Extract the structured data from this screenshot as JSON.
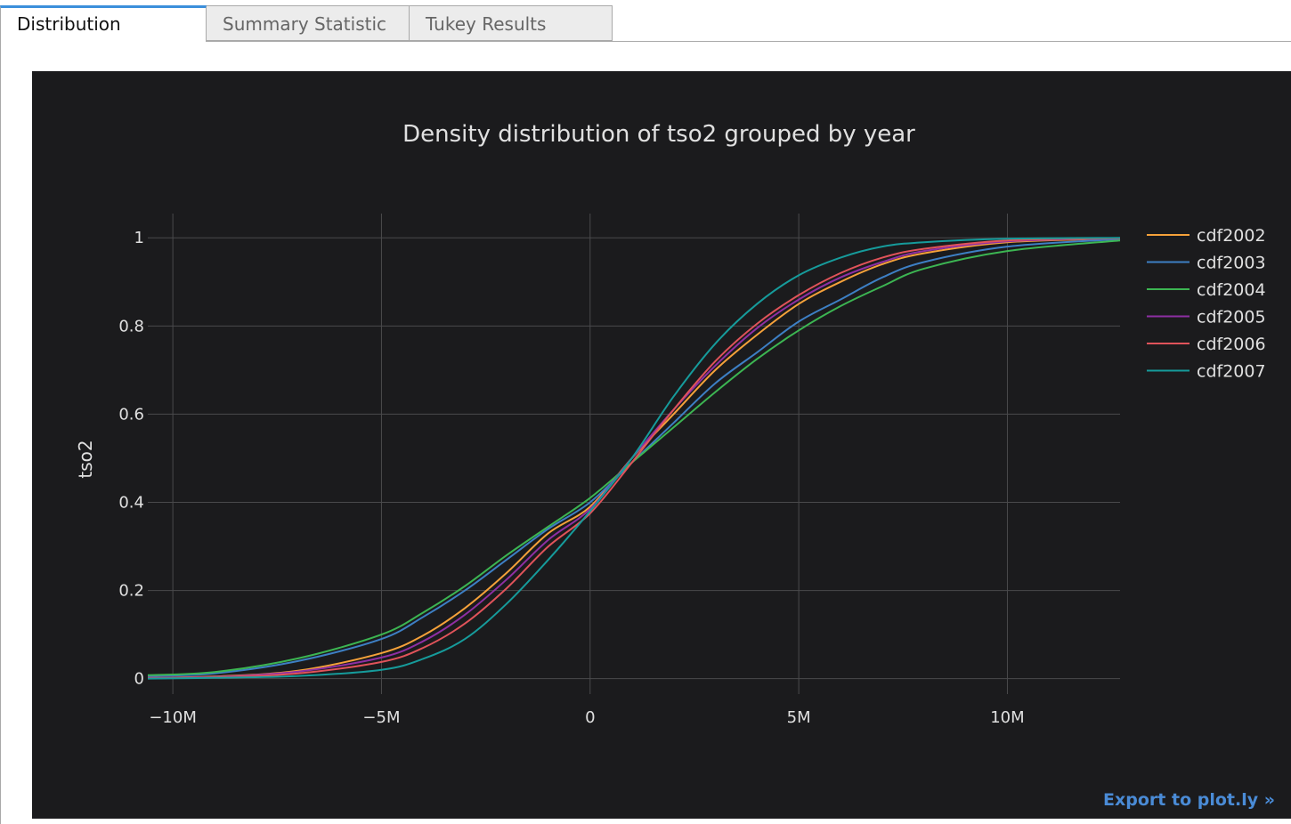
{
  "tabs": [
    {
      "label": "Distribution",
      "active": true
    },
    {
      "label": "Summary Statistic",
      "active": false
    },
    {
      "label": "Tukey Results",
      "active": false
    }
  ],
  "export_label": "Export to plot.ly »",
  "colors": {
    "background": "#1b1b1d",
    "grid": "#4a4a4c",
    "text": "#e0e0e0",
    "accent": "#3b8fdb",
    "export_link": "#4a8bd6"
  },
  "chart_data": {
    "type": "line",
    "title": "Density distribution of tso2 grouped by year",
    "xlabel": "",
    "ylabel": "tso2",
    "xlim": [
      -10600000,
      12700000
    ],
    "ylim": [
      -0.035,
      1.055
    ],
    "x_ticks": [
      {
        "value": -10000000,
        "label": "−10M"
      },
      {
        "value": -5000000,
        "label": "−5M"
      },
      {
        "value": 0,
        "label": "0"
      },
      {
        "value": 5000000,
        "label": "5M"
      },
      {
        "value": 10000000,
        "label": "10M"
      }
    ],
    "y_ticks": [
      {
        "value": 0,
        "label": "0"
      },
      {
        "value": 0.2,
        "label": "0.2"
      },
      {
        "value": 0.4,
        "label": "0.4"
      },
      {
        "value": 0.6,
        "label": "0.6"
      },
      {
        "value": 0.8,
        "label": "0.8"
      },
      {
        "value": 1,
        "label": "1"
      }
    ],
    "grid": true,
    "legend_position": "top-right",
    "x": [
      -10600000,
      -9000000,
      -7000000,
      -5000000,
      -4000000,
      -3000000,
      -2000000,
      -1000000,
      0,
      1000000,
      2000000,
      3000000,
      4000000,
      5000000,
      6000000,
      7000000,
      8000000,
      10000000,
      12700000
    ],
    "series": [
      {
        "name": "cdf2002",
        "color": "#f5a13a",
        "values": [
          0.002,
          0.005,
          0.018,
          0.058,
          0.098,
          0.16,
          0.24,
          0.33,
          0.39,
          0.5,
          0.6,
          0.7,
          0.78,
          0.85,
          0.9,
          0.94,
          0.965,
          0.99,
          0.998
        ]
      },
      {
        "name": "cdf2003",
        "color": "#3d7fc4",
        "values": [
          0.006,
          0.012,
          0.04,
          0.09,
          0.14,
          0.2,
          0.27,
          0.34,
          0.4,
          0.49,
          0.58,
          0.67,
          0.74,
          0.81,
          0.86,
          0.91,
          0.945,
          0.98,
          0.997
        ]
      },
      {
        "name": "cdf2004",
        "color": "#3cb552",
        "values": [
          0.008,
          0.015,
          0.046,
          0.1,
          0.15,
          0.21,
          0.28,
          0.345,
          0.41,
          0.49,
          0.57,
          0.65,
          0.725,
          0.79,
          0.845,
          0.89,
          0.93,
          0.97,
          0.994
        ]
      },
      {
        "name": "cdf2005",
        "color": "#8e2fa3",
        "values": [
          0.002,
          0.004,
          0.016,
          0.048,
          0.085,
          0.145,
          0.225,
          0.315,
          0.385,
          0.5,
          0.61,
          0.71,
          0.795,
          0.86,
          0.91,
          0.945,
          0.97,
          0.992,
          0.999
        ]
      },
      {
        "name": "cdf2006",
        "color": "#e0535a",
        "values": [
          0.001,
          0.003,
          0.012,
          0.038,
          0.07,
          0.125,
          0.205,
          0.3,
          0.375,
          0.49,
          0.61,
          0.72,
          0.805,
          0.87,
          0.92,
          0.955,
          0.975,
          0.994,
          0.999
        ]
      },
      {
        "name": "cdf2007",
        "color": "#169b9b",
        "values": [
          0.0,
          0.002,
          0.006,
          0.02,
          0.045,
          0.09,
          0.17,
          0.27,
          0.38,
          0.5,
          0.64,
          0.76,
          0.85,
          0.915,
          0.955,
          0.98,
          0.99,
          0.998,
          1.0
        ]
      }
    ]
  }
}
